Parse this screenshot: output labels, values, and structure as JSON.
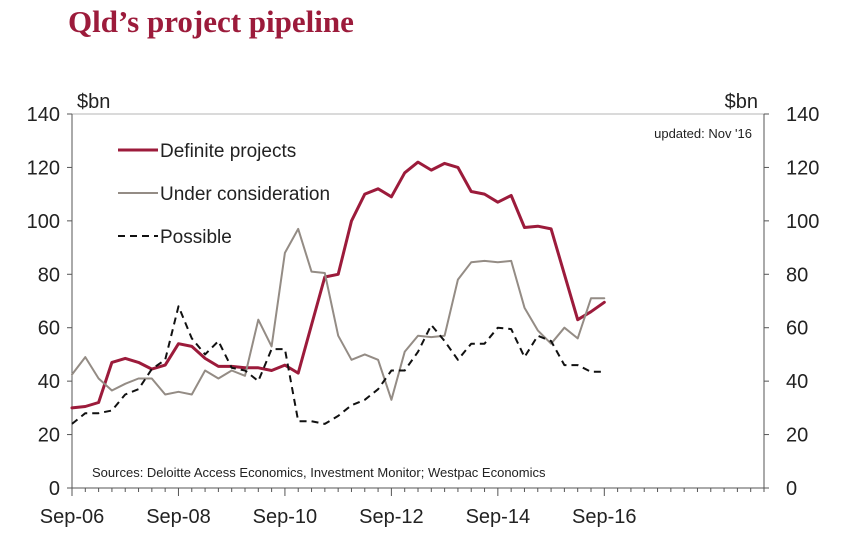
{
  "chart_data": {
    "type": "line",
    "title": "Qld’s project pipeline",
    "y_unit_left": "$bn",
    "y_unit_right": "$bn",
    "ylim": [
      0,
      140
    ],
    "yticks": [
      "0",
      "20",
      "40",
      "60",
      "80",
      "100",
      "120",
      "140"
    ],
    "xlim": [
      0,
      52
    ],
    "xtick_positions": [
      0,
      8,
      16,
      24,
      32,
      40
    ],
    "xticks": [
      "Sep-06",
      "Sep-08",
      "Sep-10",
      "Sep-12",
      "Sep-14",
      "Sep-16"
    ],
    "legend_placement": "top-left",
    "annotation": "updated:  Nov '16",
    "source": "Sources: Deloitte Access Economics, Investment Monitor;  Westpac Economics",
    "series": [
      {
        "name": "Definite projects",
        "color": "#9c1b3b",
        "style": "solid",
        "x": [
          0,
          1,
          2,
          3,
          4,
          5,
          6,
          7,
          8,
          9,
          10,
          11,
          12,
          13,
          14,
          15,
          16,
          17,
          18,
          19,
          20,
          21,
          22,
          23,
          24,
          25,
          26,
          27,
          28,
          29,
          30,
          31,
          32,
          33,
          34,
          35,
          36,
          37,
          38,
          39,
          40
        ],
        "values": [
          30,
          30.5,
          32,
          47,
          48.5,
          47,
          44.5,
          46,
          54,
          53,
          48.5,
          45.5,
          45.5,
          45,
          45,
          44,
          46,
          43,
          61,
          79,
          80,
          100,
          110,
          112,
          109,
          118,
          122,
          119,
          121.5,
          120,
          111,
          110,
          107,
          109.5,
          97.5,
          98,
          97,
          80,
          63,
          66,
          69.5
        ]
      },
      {
        "name": "Under consideration",
        "color": "#948c85",
        "style": "solid",
        "x": [
          0,
          1,
          2,
          3,
          4,
          5,
          6,
          7,
          8,
          9,
          10,
          11,
          12,
          13,
          14,
          15,
          16,
          17,
          18,
          19,
          20,
          21,
          22,
          23,
          24,
          25,
          26,
          27,
          28,
          29,
          30,
          31,
          32,
          33,
          34,
          35,
          36,
          37,
          38,
          39,
          40
        ],
        "values": [
          42.5,
          49,
          41,
          36.5,
          39,
          41,
          41,
          35,
          36,
          35,
          44,
          41,
          44,
          42,
          63,
          53,
          88,
          97,
          81,
          80.5,
          57,
          48,
          50,
          48,
          33,
          51,
          57,
          56.5,
          57,
          78,
          84.5,
          85,
          84.5,
          85,
          67.5,
          59,
          54,
          60,
          56,
          71,
          71
        ]
      },
      {
        "name": "Possible",
        "color": "#111111",
        "style": "dashed",
        "x": [
          0,
          1,
          2,
          3,
          4,
          5,
          6,
          7,
          8,
          9,
          10,
          11,
          12,
          13,
          14,
          15,
          16,
          17,
          18,
          19,
          20,
          21,
          22,
          23,
          24,
          25,
          26,
          27,
          28,
          29,
          30,
          31,
          32,
          33,
          34,
          35,
          36,
          37,
          38,
          39,
          40
        ],
        "values": [
          24,
          28,
          28,
          29,
          35,
          37,
          44.5,
          48,
          68,
          56,
          50,
          55,
          45,
          44,
          40,
          52,
          52,
          25,
          25,
          24,
          27,
          31,
          33,
          37,
          44,
          44,
          51,
          61,
          55,
          48,
          54,
          54,
          60,
          59.5,
          49,
          57,
          55,
          46,
          46,
          43.5,
          43.5
        ]
      }
    ]
  }
}
